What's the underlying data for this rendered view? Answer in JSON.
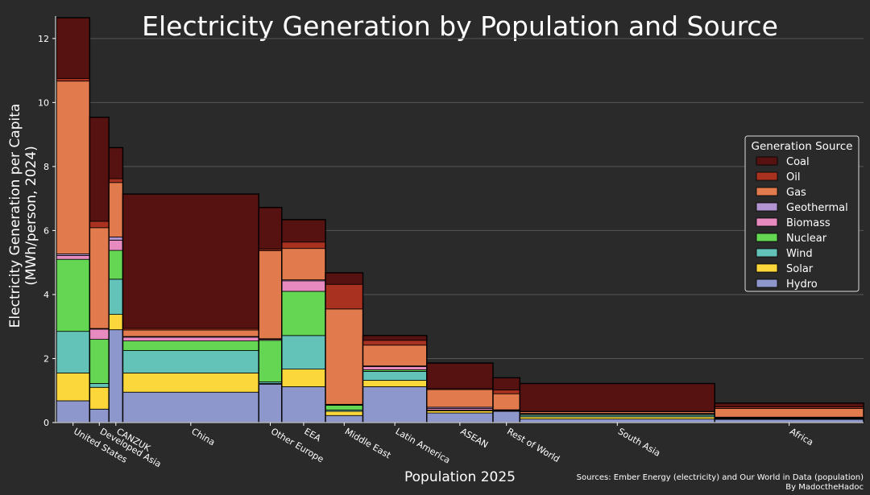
{
  "chart_data": {
    "type": "bar",
    "title": "Electricity Generation by Population and Source",
    "xlabel": "Population 2025",
    "ylabel_line1": "Electricity Generation per Capita",
    "ylabel_line2": "(MWh/person, 2024)",
    "ylim": [
      0,
      12.7
    ],
    "yticks": [
      0,
      2,
      4,
      6,
      8,
      10,
      12
    ],
    "grid": "horizontal",
    "legend_placement": "right",
    "legend_title": "Generation Source",
    "sources_line1": "Sources: Ember Energy (electricity) and Our World in Data (population)",
    "sources_line2": "By MadoctheHadoc",
    "stack_order": [
      "Hydro",
      "Solar",
      "Wind",
      "Nuclear",
      "Biomass",
      "Geothermal",
      "Gas",
      "Oil",
      "Coal"
    ],
    "legend_order": [
      "Coal",
      "Oil",
      "Gas",
      "Geothermal",
      "Biomass",
      "Nuclear",
      "Wind",
      "Solar",
      "Hydro"
    ],
    "colors": {
      "Coal": "#561111",
      "Oil": "#a8311f",
      "Gas": "#e17a4c",
      "Geothermal": "#b294d1",
      "Biomass": "#e68ac0",
      "Nuclear": "#64d654",
      "Wind": "#64c3b8",
      "Solar": "#fcd73b",
      "Hydro": "#8e97cc"
    },
    "regions": [
      {
        "name": "United States",
        "population_millions": 347,
        "values": {
          "Hydro": 0.68,
          "Solar": 0.87,
          "Wind": 1.3,
          "Nuclear": 2.25,
          "Biomass": 0.12,
          "Geothermal": 0.05,
          "Gas": 5.4,
          "Oil": 0.08,
          "Coal": 1.9
        }
      },
      {
        "name": "Developed Asia",
        "population_millions": 200,
        "values": {
          "Hydro": 0.42,
          "Solar": 0.68,
          "Wind": 0.12,
          "Nuclear": 1.38,
          "Biomass": 0.32,
          "Geothermal": 0.02,
          "Gas": 3.15,
          "Oil": 0.2,
          "Coal": 3.25
        }
      },
      {
        "name": "CANZUK",
        "population_millions": 145,
        "values": {
          "Hydro": 2.9,
          "Solar": 0.48,
          "Wind": 1.1,
          "Nuclear": 0.9,
          "Biomass": 0.32,
          "Geothermal": 0.1,
          "Gas": 1.7,
          "Oil": 0.12,
          "Coal": 0.97
        }
      },
      {
        "name": "China",
        "population_millions": 1416,
        "values": {
          "Hydro": 0.95,
          "Solar": 0.6,
          "Wind": 0.7,
          "Nuclear": 0.3,
          "Biomass": 0.12,
          "Geothermal": 0.02,
          "Gas": 0.2,
          "Oil": 0.05,
          "Coal": 4.2
        }
      },
      {
        "name": "Other Europe",
        "population_millions": 240,
        "values": {
          "Hydro": 1.2,
          "Solar": 0.02,
          "Wind": 0.05,
          "Nuclear": 1.3,
          "Biomass": 0.03,
          "Geothermal": 0.02,
          "Gas": 2.75,
          "Oil": 0.05,
          "Coal": 1.3
        }
      },
      {
        "name": "EEA",
        "population_millions": 455,
        "values": {
          "Hydro": 1.12,
          "Solar": 0.55,
          "Wind": 1.05,
          "Nuclear": 1.38,
          "Biomass": 0.33,
          "Geothermal": 0.03,
          "Gas": 0.98,
          "Oil": 0.2,
          "Coal": 0.7
        }
      },
      {
        "name": "Middle East",
        "population_millions": 390,
        "values": {
          "Hydro": 0.22,
          "Solar": 0.13,
          "Wind": 0.04,
          "Nuclear": 0.15,
          "Biomass": 0.01,
          "Geothermal": 0.02,
          "Gas": 2.98,
          "Oil": 0.77,
          "Coal": 0.36
        }
      },
      {
        "name": "Latin America",
        "population_millions": 665,
        "values": {
          "Hydro": 1.12,
          "Solar": 0.2,
          "Wind": 0.28,
          "Nuclear": 0.05,
          "Biomass": 0.1,
          "Geothermal": 0.02,
          "Gas": 0.65,
          "Oil": 0.15,
          "Coal": 0.15
        }
      },
      {
        "name": "ASEAN",
        "population_millions": 690,
        "values": {
          "Hydro": 0.3,
          "Solar": 0.07,
          "Wind": 0.02,
          "Nuclear": 0.0,
          "Biomass": 0.05,
          "Geothermal": 0.04,
          "Gas": 0.55,
          "Oil": 0.03,
          "Coal": 0.8
        }
      },
      {
        "name": "Rest of World",
        "population_millions": 280,
        "values": {
          "Hydro": 0.35,
          "Solar": 0.02,
          "Wind": 0.01,
          "Nuclear": 0.0,
          "Biomass": 0.02,
          "Geothermal": 0.0,
          "Gas": 0.5,
          "Oil": 0.12,
          "Coal": 0.38
        }
      },
      {
        "name": "South Asia",
        "population_millions": 2030,
        "values": {
          "Hydro": 0.11,
          "Solar": 0.07,
          "Wind": 0.05,
          "Nuclear": 0.03,
          "Biomass": 0.03,
          "Geothermal": 0.0,
          "Gas": 0.05,
          "Oil": 0.01,
          "Coal": 0.87
        }
      },
      {
        "name": "Africa",
        "population_millions": 1550,
        "values": {
          "Hydro": 0.1,
          "Solar": 0.02,
          "Wind": 0.02,
          "Nuclear": 0.01,
          "Biomass": 0.01,
          "Geothermal": 0.01,
          "Gas": 0.27,
          "Oil": 0.05,
          "Coal": 0.12
        }
      }
    ]
  }
}
